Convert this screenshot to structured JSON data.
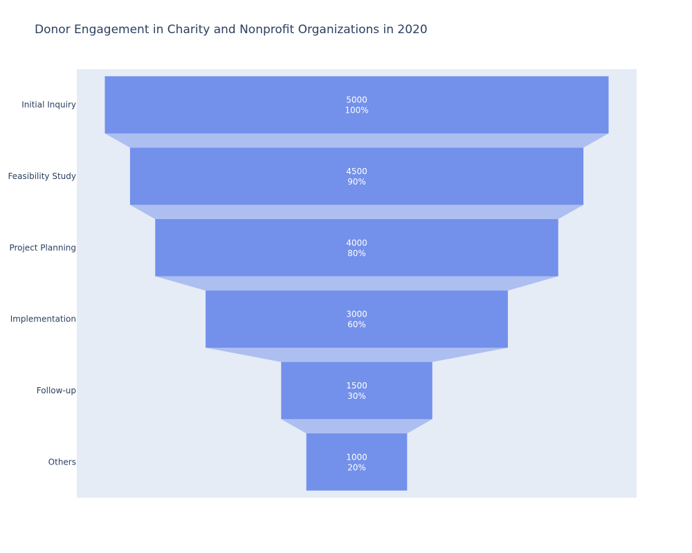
{
  "chart_data": {
    "type": "funnel",
    "title": "Donor Engagement in Charity and Nonprofit Organizations in 2020",
    "categories": [
      "Initial Inquiry",
      "Feasibility Study",
      "Project Planning",
      "Implementation",
      "Follow-up",
      "Others"
    ],
    "values": [
      5000,
      4500,
      4000,
      3000,
      1500,
      1000
    ],
    "percent_labels": [
      "100%",
      "90%",
      "80%",
      "60%",
      "30%",
      "20%"
    ],
    "colors": {
      "bar": "#7390ea",
      "connector": "#adbef1",
      "plot_background": "#e5ecf6",
      "text": "#2a3f5f",
      "bar_text": "#ffffff"
    }
  }
}
